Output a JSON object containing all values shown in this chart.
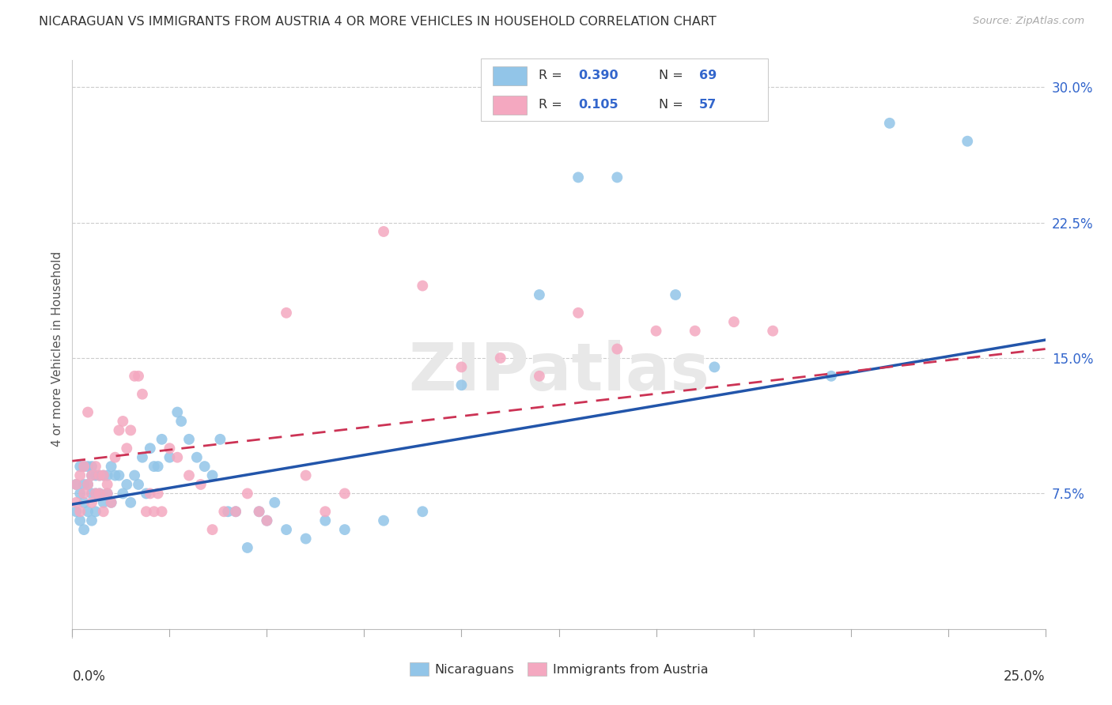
{
  "title": "NICARAGUAN VS IMMIGRANTS FROM AUSTRIA 4 OR MORE VEHICLES IN HOUSEHOLD CORRELATION CHART",
  "source": "Source: ZipAtlas.com",
  "ylabel": "4 or more Vehicles in Household",
  "ytick_vals": [
    0.0,
    0.075,
    0.15,
    0.225,
    0.3
  ],
  "ytick_labels": [
    "",
    "7.5%",
    "15.0%",
    "22.5%",
    "30.0%"
  ],
  "xlim": [
    0.0,
    0.25
  ],
  "ylim": [
    -0.005,
    0.315
  ],
  "legend_r1": "0.390",
  "legend_n1": "69",
  "legend_r2": "0.105",
  "legend_n2": "57",
  "blue_scatter": "#92C5E8",
  "pink_scatter": "#F4A8C0",
  "blue_line": "#2255AA",
  "pink_line": "#CC3355",
  "watermark": "ZIPatlas",
  "nic_x": [
    0.001,
    0.001,
    0.002,
    0.002,
    0.002,
    0.003,
    0.003,
    0.003,
    0.003,
    0.004,
    0.004,
    0.004,
    0.005,
    0.005,
    0.005,
    0.005,
    0.006,
    0.006,
    0.006,
    0.007,
    0.007,
    0.008,
    0.008,
    0.009,
    0.009,
    0.01,
    0.01,
    0.011,
    0.012,
    0.013,
    0.014,
    0.015,
    0.016,
    0.017,
    0.018,
    0.019,
    0.02,
    0.021,
    0.022,
    0.023,
    0.025,
    0.027,
    0.028,
    0.03,
    0.032,
    0.034,
    0.036,
    0.038,
    0.04,
    0.042,
    0.045,
    0.048,
    0.05,
    0.052,
    0.055,
    0.06,
    0.065,
    0.07,
    0.08,
    0.09,
    0.1,
    0.12,
    0.13,
    0.14,
    0.155,
    0.165,
    0.195,
    0.21,
    0.23
  ],
  "nic_y": [
    0.065,
    0.08,
    0.06,
    0.075,
    0.09,
    0.055,
    0.07,
    0.08,
    0.09,
    0.065,
    0.08,
    0.09,
    0.06,
    0.075,
    0.085,
    0.09,
    0.065,
    0.075,
    0.085,
    0.075,
    0.085,
    0.07,
    0.085,
    0.075,
    0.085,
    0.07,
    0.09,
    0.085,
    0.085,
    0.075,
    0.08,
    0.07,
    0.085,
    0.08,
    0.095,
    0.075,
    0.1,
    0.09,
    0.09,
    0.105,
    0.095,
    0.12,
    0.115,
    0.105,
    0.095,
    0.09,
    0.085,
    0.105,
    0.065,
    0.065,
    0.045,
    0.065,
    0.06,
    0.07,
    0.055,
    0.05,
    0.06,
    0.055,
    0.06,
    0.065,
    0.135,
    0.185,
    0.25,
    0.25,
    0.185,
    0.145,
    0.14,
    0.28,
    0.27
  ],
  "aut_x": [
    0.001,
    0.001,
    0.002,
    0.002,
    0.003,
    0.003,
    0.004,
    0.004,
    0.005,
    0.005,
    0.006,
    0.006,
    0.007,
    0.007,
    0.008,
    0.008,
    0.009,
    0.009,
    0.01,
    0.011,
    0.012,
    0.013,
    0.014,
    0.015,
    0.016,
    0.017,
    0.018,
    0.019,
    0.02,
    0.021,
    0.022,
    0.023,
    0.025,
    0.027,
    0.03,
    0.033,
    0.036,
    0.039,
    0.042,
    0.045,
    0.048,
    0.05,
    0.055,
    0.06,
    0.065,
    0.07,
    0.08,
    0.09,
    0.1,
    0.11,
    0.12,
    0.13,
    0.14,
    0.15,
    0.16,
    0.17,
    0.18
  ],
  "aut_y": [
    0.07,
    0.08,
    0.065,
    0.085,
    0.075,
    0.09,
    0.08,
    0.12,
    0.07,
    0.085,
    0.075,
    0.09,
    0.075,
    0.085,
    0.065,
    0.085,
    0.08,
    0.075,
    0.07,
    0.095,
    0.11,
    0.115,
    0.1,
    0.11,
    0.14,
    0.14,
    0.13,
    0.065,
    0.075,
    0.065,
    0.075,
    0.065,
    0.1,
    0.095,
    0.085,
    0.08,
    0.055,
    0.065,
    0.065,
    0.075,
    0.065,
    0.06,
    0.175,
    0.085,
    0.065,
    0.075,
    0.22,
    0.19,
    0.145,
    0.15,
    0.14,
    0.175,
    0.155,
    0.165,
    0.165,
    0.17,
    0.165
  ]
}
